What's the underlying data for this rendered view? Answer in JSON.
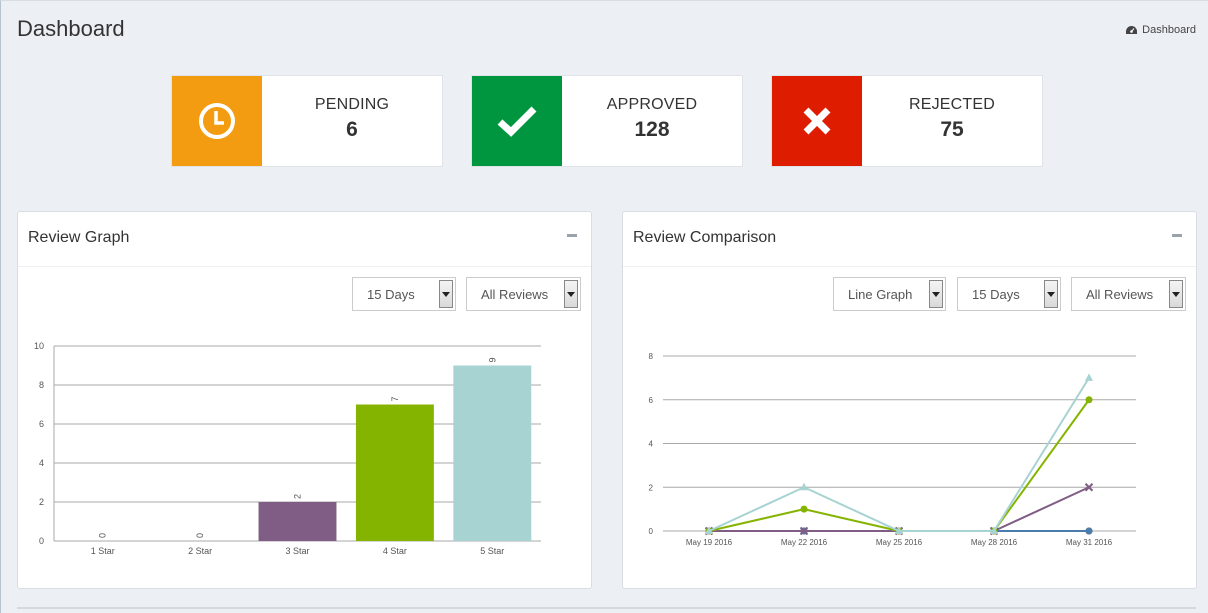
{
  "header": {
    "title": "Dashboard",
    "breadcrumb": "Dashboard"
  },
  "stats": [
    {
      "label": "PENDING",
      "value": "6",
      "color": "#f39c12",
      "icon": "clock-icon"
    },
    {
      "label": "APPROVED",
      "value": "128",
      "color": "#00963f",
      "icon": "check-icon"
    },
    {
      "label": "REJECTED",
      "value": "75",
      "color": "#dd1c00",
      "icon": "close-icon"
    }
  ],
  "review_graph": {
    "title": "Review Graph",
    "period_select": "15 Days",
    "reviews_select": "All Reviews"
  },
  "review_comparison": {
    "title": "Review Comparison",
    "graph_type_select": "Line Graph",
    "period_select": "15 Days",
    "reviews_select": "All Reviews"
  },
  "chart_data": [
    {
      "type": "bar",
      "categories": [
        "1 Star",
        "2 Star",
        "3 Star",
        "4 Star",
        "5 Star"
      ],
      "values": [
        0,
        0,
        2,
        7,
        9
      ],
      "colors": [
        "#c5b5c9",
        "#c5b5c9",
        "#7f5d84",
        "#85b400",
        "#a7d3d3"
      ],
      "ylim": [
        0,
        10
      ],
      "yticks": [
        0,
        2,
        4,
        6,
        8,
        10
      ],
      "grid": true
    },
    {
      "type": "line",
      "x": [
        "May 19 2016",
        "May 22 2016",
        "May 25 2016",
        "May 28 2016",
        "May 31 2016"
      ],
      "ylim": [
        0,
        8
      ],
      "yticks": [
        0,
        2,
        4,
        6,
        8
      ],
      "grid": true,
      "series": [
        {
          "values": [
            0,
            0,
            0,
            0,
            0
          ],
          "color": "#8b2733",
          "marker": "circle"
        },
        {
          "values": [
            0,
            0,
            0,
            0,
            0
          ],
          "color": "#4a7dab",
          "marker": "circle"
        },
        {
          "values": [
            0,
            0,
            0,
            0,
            2
          ],
          "color": "#7f5d84",
          "marker": "x"
        },
        {
          "values": [
            0,
            1,
            0,
            0,
            6
          ],
          "color": "#85b400",
          "marker": "circle"
        },
        {
          "values": [
            0,
            2,
            0,
            0,
            7
          ],
          "color": "#a7d3d3",
          "marker": "triangle"
        }
      ]
    }
  ]
}
